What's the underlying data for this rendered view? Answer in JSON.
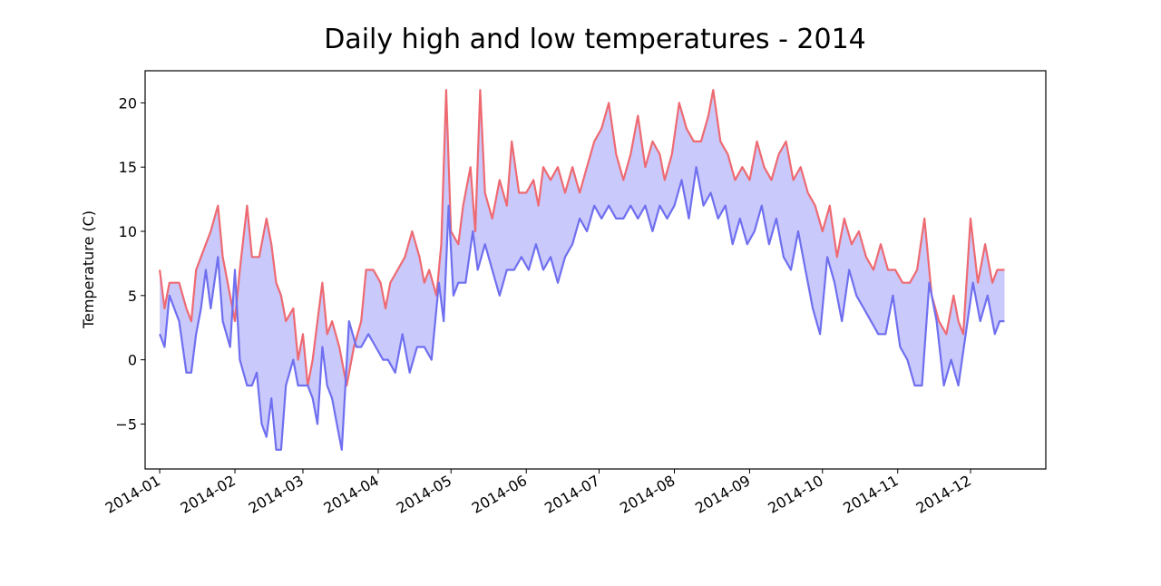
{
  "chart_data": {
    "type": "line",
    "title": "Daily high and low temperatures - 2014",
    "xlabel": "",
    "ylabel": "Temperature (C)",
    "ylim": [
      -8.5,
      22.5
    ],
    "xlim": [
      "2013-12-26",
      "2015-01-01"
    ],
    "grid": false,
    "fill_between": true,
    "colors": {
      "high": "#ee6a72",
      "low": "#6f6ff0",
      "fill": "#c9c9fb"
    },
    "x_ticks": [
      "2014-01",
      "2014-02",
      "2014-03",
      "2014-04",
      "2014-05",
      "2014-06",
      "2014-07",
      "2014-08",
      "2014-09",
      "2014-10",
      "2014-11",
      "2014-12"
    ],
    "y_ticks": [
      {
        "value": 20,
        "label": "20"
      },
      {
        "value": 15,
        "label": "15"
      },
      {
        "value": 10,
        "label": "10"
      },
      {
        "value": 5,
        "label": "5"
      },
      {
        "value": 0,
        "label": "0"
      },
      {
        "value": -5,
        "label": "−5"
      }
    ],
    "series": [
      {
        "key": "high",
        "points": [
          [
            "2014-01-01",
            7
          ],
          [
            "2014-01-03",
            4
          ],
          [
            "2014-01-05",
            6
          ],
          [
            "2014-01-09",
            6
          ],
          [
            "2014-01-12",
            4
          ],
          [
            "2014-01-14",
            3
          ],
          [
            "2014-01-16",
            7
          ],
          [
            "2014-01-18",
            8
          ],
          [
            "2014-01-22",
            10
          ],
          [
            "2014-01-25",
            12
          ],
          [
            "2014-01-27",
            8
          ],
          [
            "2014-01-29",
            6
          ],
          [
            "2014-02-01",
            3
          ],
          [
            "2014-02-03",
            7
          ],
          [
            "2014-02-06",
            12
          ],
          [
            "2014-02-08",
            8
          ],
          [
            "2014-02-11",
            8
          ],
          [
            "2014-02-14",
            11
          ],
          [
            "2014-02-16",
            9
          ],
          [
            "2014-02-18",
            6
          ],
          [
            "2014-02-20",
            5
          ],
          [
            "2014-02-22",
            3
          ],
          [
            "2014-02-25",
            4
          ],
          [
            "2014-02-27",
            0
          ],
          [
            "2014-03-01",
            2
          ],
          [
            "2014-03-03",
            -2
          ],
          [
            "2014-03-05",
            0
          ],
          [
            "2014-03-07",
            3
          ],
          [
            "2014-03-09",
            6
          ],
          [
            "2014-03-11",
            2
          ],
          [
            "2014-03-13",
            3
          ],
          [
            "2014-03-16",
            1
          ],
          [
            "2014-03-19",
            -2
          ],
          [
            "2014-03-22",
            1
          ],
          [
            "2014-03-25",
            3
          ],
          [
            "2014-03-27",
            7
          ],
          [
            "2014-03-30",
            7
          ],
          [
            "2014-04-02",
            6
          ],
          [
            "2014-04-04",
            4
          ],
          [
            "2014-04-06",
            6
          ],
          [
            "2014-04-09",
            7
          ],
          [
            "2014-04-12",
            8
          ],
          [
            "2014-04-15",
            10
          ],
          [
            "2014-04-18",
            8
          ],
          [
            "2014-04-20",
            6
          ],
          [
            "2014-04-22",
            7
          ],
          [
            "2014-04-25",
            5
          ],
          [
            "2014-04-27",
            9
          ],
          [
            "2014-04-29",
            21
          ],
          [
            "2014-05-01",
            10
          ],
          [
            "2014-05-04",
            9
          ],
          [
            "2014-05-06",
            12
          ],
          [
            "2014-05-09",
            15
          ],
          [
            "2014-05-11",
            10
          ],
          [
            "2014-05-13",
            21
          ],
          [
            "2014-05-15",
            13
          ],
          [
            "2014-05-18",
            11
          ],
          [
            "2014-05-21",
            14
          ],
          [
            "2014-05-24",
            12
          ],
          [
            "2014-05-26",
            17
          ],
          [
            "2014-05-29",
            13
          ],
          [
            "2014-06-01",
            13
          ],
          [
            "2014-06-04",
            14
          ],
          [
            "2014-06-06",
            12
          ],
          [
            "2014-06-08",
            15
          ],
          [
            "2014-06-11",
            14
          ],
          [
            "2014-06-14",
            15
          ],
          [
            "2014-06-17",
            13
          ],
          [
            "2014-06-20",
            15
          ],
          [
            "2014-06-23",
            13
          ],
          [
            "2014-06-26",
            15
          ],
          [
            "2014-06-29",
            17
          ],
          [
            "2014-07-02",
            18
          ],
          [
            "2014-07-05",
            20
          ],
          [
            "2014-07-08",
            16
          ],
          [
            "2014-07-11",
            14
          ],
          [
            "2014-07-14",
            16
          ],
          [
            "2014-07-17",
            19
          ],
          [
            "2014-07-20",
            15
          ],
          [
            "2014-07-23",
            17
          ],
          [
            "2014-07-26",
            16
          ],
          [
            "2014-07-28",
            14
          ],
          [
            "2014-07-31",
            16
          ],
          [
            "2014-08-03",
            20
          ],
          [
            "2014-08-06",
            18
          ],
          [
            "2014-08-09",
            17
          ],
          [
            "2014-08-12",
            17
          ],
          [
            "2014-08-15",
            19
          ],
          [
            "2014-08-17",
            21
          ],
          [
            "2014-08-20",
            17
          ],
          [
            "2014-08-23",
            16
          ],
          [
            "2014-08-26",
            14
          ],
          [
            "2014-08-29",
            15
          ],
          [
            "2014-09-01",
            14
          ],
          [
            "2014-09-04",
            17
          ],
          [
            "2014-09-07",
            15
          ],
          [
            "2014-09-10",
            14
          ],
          [
            "2014-09-13",
            16
          ],
          [
            "2014-09-16",
            17
          ],
          [
            "2014-09-19",
            14
          ],
          [
            "2014-09-22",
            15
          ],
          [
            "2014-09-25",
            13
          ],
          [
            "2014-09-28",
            12
          ],
          [
            "2014-10-01",
            10
          ],
          [
            "2014-10-04",
            12
          ],
          [
            "2014-10-07",
            8
          ],
          [
            "2014-10-10",
            11
          ],
          [
            "2014-10-13",
            9
          ],
          [
            "2014-10-16",
            10
          ],
          [
            "2014-10-19",
            8
          ],
          [
            "2014-10-22",
            7
          ],
          [
            "2014-10-25",
            9
          ],
          [
            "2014-10-28",
            7
          ],
          [
            "2014-10-31",
            7
          ],
          [
            "2014-11-03",
            6
          ],
          [
            "2014-11-06",
            6
          ],
          [
            "2014-11-09",
            7
          ],
          [
            "2014-11-12",
            11
          ],
          [
            "2014-11-15",
            5
          ],
          [
            "2014-11-18",
            3
          ],
          [
            "2014-11-21",
            2
          ],
          [
            "2014-11-24",
            5
          ],
          [
            "2014-11-26",
            3
          ],
          [
            "2014-11-28",
            2
          ],
          [
            "2014-12-01",
            11
          ],
          [
            "2014-12-04",
            6
          ],
          [
            "2014-12-07",
            9
          ],
          [
            "2014-12-10",
            6
          ],
          [
            "2014-12-12",
            7
          ],
          [
            "2014-12-15",
            7
          ]
        ]
      },
      {
        "key": "low",
        "points": [
          [
            "2014-01-01",
            2
          ],
          [
            "2014-01-03",
            1
          ],
          [
            "2014-01-05",
            5
          ],
          [
            "2014-01-09",
            3
          ],
          [
            "2014-01-12",
            -1
          ],
          [
            "2014-01-14",
            -1
          ],
          [
            "2014-01-16",
            2
          ],
          [
            "2014-01-18",
            4
          ],
          [
            "2014-01-20",
            7
          ],
          [
            "2014-01-22",
            4
          ],
          [
            "2014-01-25",
            8
          ],
          [
            "2014-01-27",
            3
          ],
          [
            "2014-01-30",
            1
          ],
          [
            "2014-02-01",
            7
          ],
          [
            "2014-02-03",
            0
          ],
          [
            "2014-02-06",
            -2
          ],
          [
            "2014-02-08",
            -2
          ],
          [
            "2014-02-10",
            -1
          ],
          [
            "2014-02-12",
            -5
          ],
          [
            "2014-02-14",
            -6
          ],
          [
            "2014-02-16",
            -3
          ],
          [
            "2014-02-18",
            -7
          ],
          [
            "2014-02-20",
            -7
          ],
          [
            "2014-02-22",
            -2
          ],
          [
            "2014-02-25",
            0
          ],
          [
            "2014-02-27",
            -2
          ],
          [
            "2014-03-01",
            -2
          ],
          [
            "2014-03-03",
            -2
          ],
          [
            "2014-03-05",
            -3
          ],
          [
            "2014-03-07",
            -5
          ],
          [
            "2014-03-09",
            1
          ],
          [
            "2014-03-11",
            -2
          ],
          [
            "2014-03-13",
            -3
          ],
          [
            "2014-03-15",
            -5
          ],
          [
            "2014-03-17",
            -7
          ],
          [
            "2014-03-20",
            3
          ],
          [
            "2014-03-23",
            1
          ],
          [
            "2014-03-25",
            1
          ],
          [
            "2014-03-28",
            2
          ],
          [
            "2014-03-31",
            1
          ],
          [
            "2014-04-03",
            0
          ],
          [
            "2014-04-05",
            0
          ],
          [
            "2014-04-08",
            -1
          ],
          [
            "2014-04-11",
            2
          ],
          [
            "2014-04-14",
            -1
          ],
          [
            "2014-04-17",
            1
          ],
          [
            "2014-04-20",
            1
          ],
          [
            "2014-04-23",
            0
          ],
          [
            "2014-04-26",
            6
          ],
          [
            "2014-04-28",
            3
          ],
          [
            "2014-04-30",
            12
          ],
          [
            "2014-05-02",
            5
          ],
          [
            "2014-05-04",
            6
          ],
          [
            "2014-05-07",
            6
          ],
          [
            "2014-05-10",
            10
          ],
          [
            "2014-05-12",
            7
          ],
          [
            "2014-05-15",
            9
          ],
          [
            "2014-05-18",
            7
          ],
          [
            "2014-05-21",
            5
          ],
          [
            "2014-05-24",
            7
          ],
          [
            "2014-05-27",
            7
          ],
          [
            "2014-05-30",
            8
          ],
          [
            "2014-06-02",
            7
          ],
          [
            "2014-06-05",
            9
          ],
          [
            "2014-06-08",
            7
          ],
          [
            "2014-06-11",
            8
          ],
          [
            "2014-06-14",
            6
          ],
          [
            "2014-06-17",
            8
          ],
          [
            "2014-06-20",
            9
          ],
          [
            "2014-06-23",
            11
          ],
          [
            "2014-06-26",
            10
          ],
          [
            "2014-06-29",
            12
          ],
          [
            "2014-07-02",
            11
          ],
          [
            "2014-07-05",
            12
          ],
          [
            "2014-07-08",
            11
          ],
          [
            "2014-07-11",
            11
          ],
          [
            "2014-07-14",
            12
          ],
          [
            "2014-07-17",
            11
          ],
          [
            "2014-07-20",
            12
          ],
          [
            "2014-07-23",
            10
          ],
          [
            "2014-07-26",
            12
          ],
          [
            "2014-07-29",
            11
          ],
          [
            "2014-08-01",
            12
          ],
          [
            "2014-08-04",
            14
          ],
          [
            "2014-08-07",
            11
          ],
          [
            "2014-08-10",
            15
          ],
          [
            "2014-08-13",
            12
          ],
          [
            "2014-08-16",
            13
          ],
          [
            "2014-08-19",
            11
          ],
          [
            "2014-08-22",
            12
          ],
          [
            "2014-08-25",
            9
          ],
          [
            "2014-08-28",
            11
          ],
          [
            "2014-08-31",
            9
          ],
          [
            "2014-09-03",
            10
          ],
          [
            "2014-09-06",
            12
          ],
          [
            "2014-09-09",
            9
          ],
          [
            "2014-09-12",
            11
          ],
          [
            "2014-09-15",
            8
          ],
          [
            "2014-09-18",
            7
          ],
          [
            "2014-09-21",
            10
          ],
          [
            "2014-09-24",
            7
          ],
          [
            "2014-09-27",
            4
          ],
          [
            "2014-09-30",
            2
          ],
          [
            "2014-10-03",
            8
          ],
          [
            "2014-10-06",
            6
          ],
          [
            "2014-10-09",
            3
          ],
          [
            "2014-10-12",
            7
          ],
          [
            "2014-10-15",
            5
          ],
          [
            "2014-10-18",
            4
          ],
          [
            "2014-10-21",
            3
          ],
          [
            "2014-10-24",
            2
          ],
          [
            "2014-10-27",
            2
          ],
          [
            "2014-10-30",
            5
          ],
          [
            "2014-11-02",
            1
          ],
          [
            "2014-11-05",
            0
          ],
          [
            "2014-11-08",
            -2
          ],
          [
            "2014-11-11",
            -2
          ],
          [
            "2014-11-14",
            6
          ],
          [
            "2014-11-17",
            3
          ],
          [
            "2014-11-20",
            -2
          ],
          [
            "2014-11-23",
            0
          ],
          [
            "2014-11-26",
            -2
          ],
          [
            "2014-11-29",
            2
          ],
          [
            "2014-12-02",
            6
          ],
          [
            "2014-12-05",
            3
          ],
          [
            "2014-12-08",
            5
          ],
          [
            "2014-12-11",
            2
          ],
          [
            "2014-12-13",
            3
          ],
          [
            "2014-12-15",
            3
          ]
        ]
      }
    ]
  }
}
